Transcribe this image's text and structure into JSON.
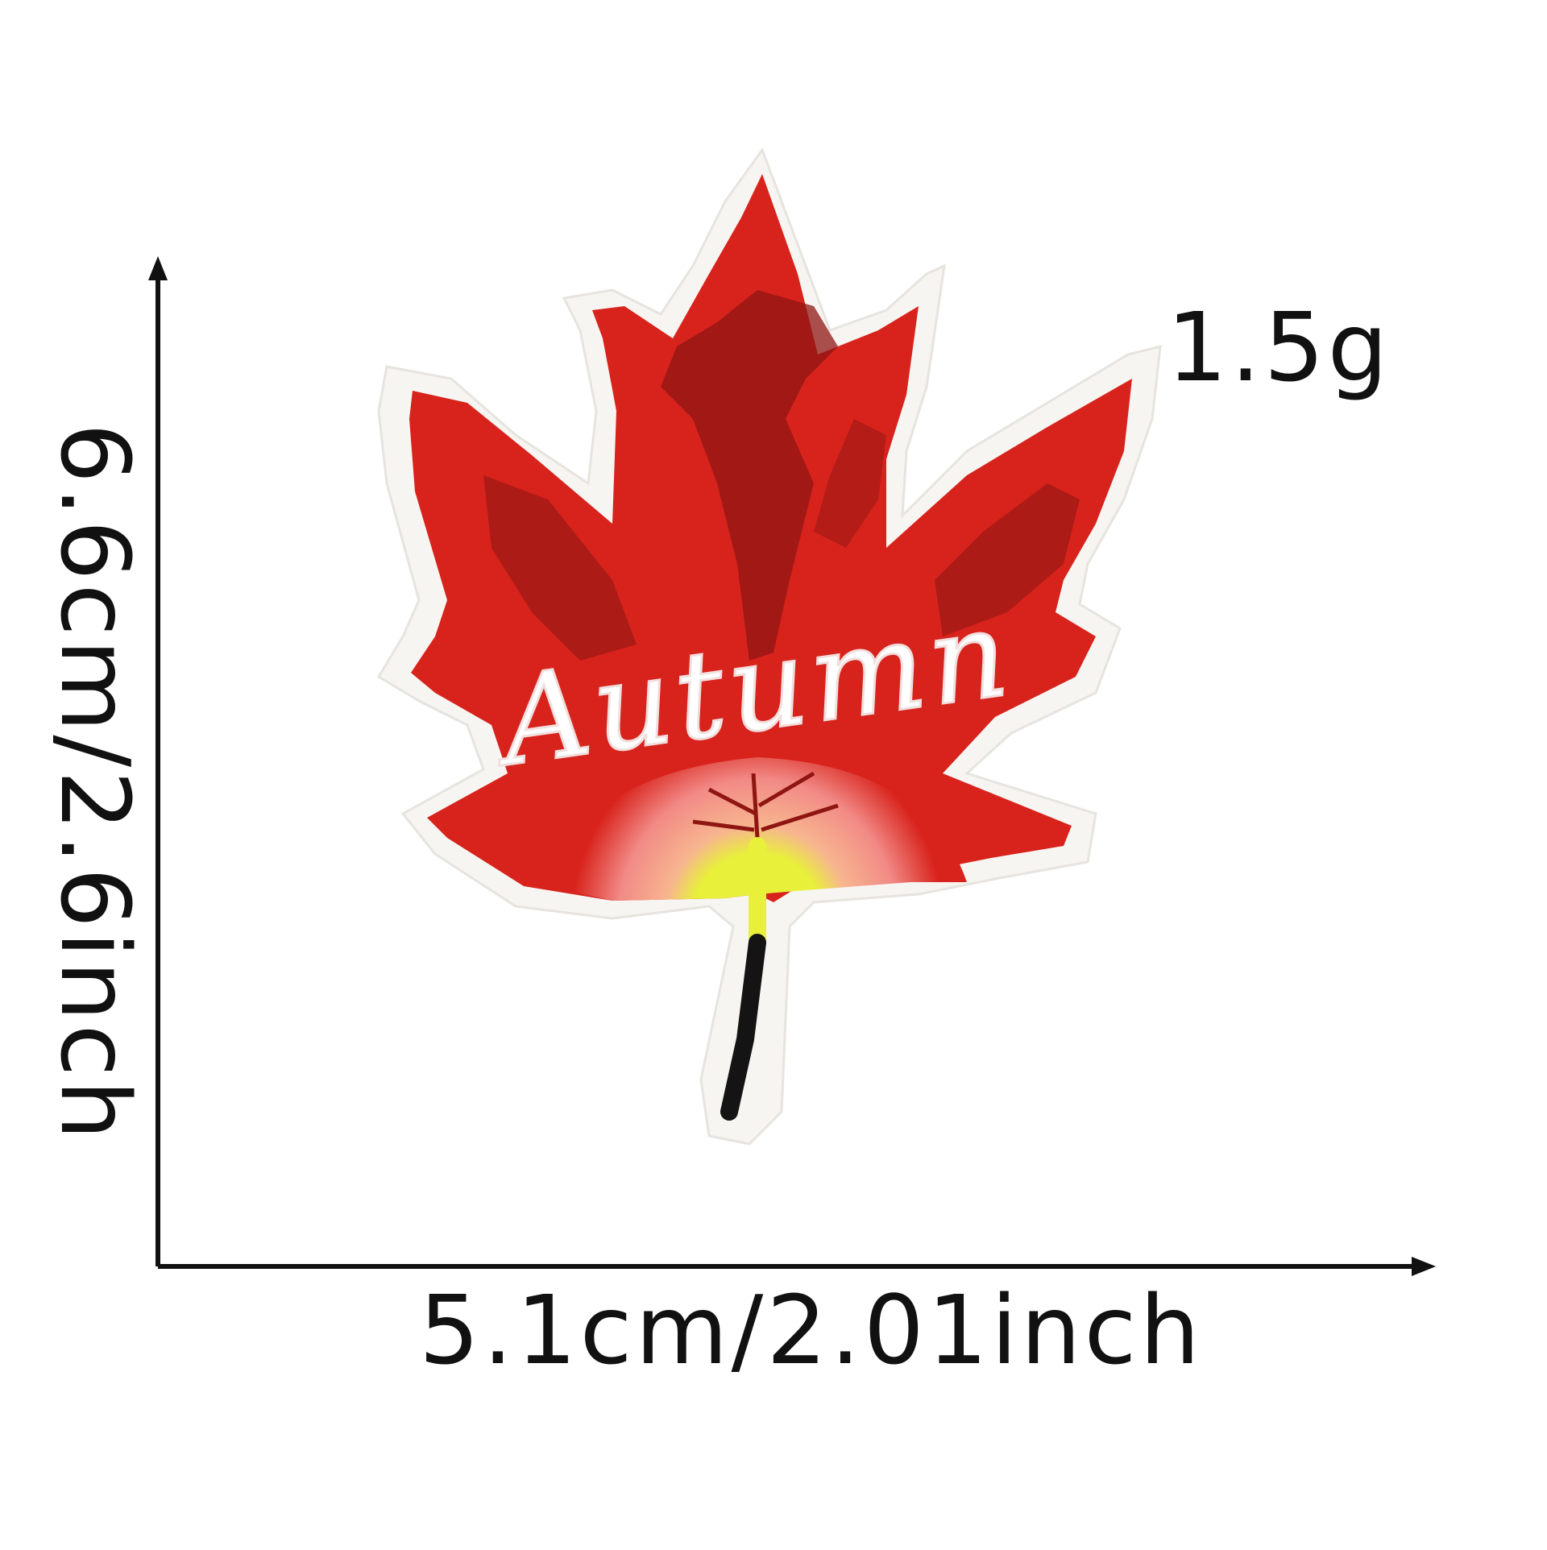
{
  "product": {
    "embroidered_text": "Autumn",
    "weight": "1.5g",
    "width": "5.1cm/2.01inch",
    "height": "6.6cm/2.6inch"
  },
  "colors": {
    "background": "#ffffff",
    "felt_border": "#f7f5f2",
    "leaf_red": "#d8231c",
    "leaf_dark_red": "#8f1512",
    "sunset_pink": "#f28a86",
    "sunset_peach": "#f7b58f",
    "sunset_yellow": "#e8f03a",
    "stem_black": "#141414",
    "arrow_black": "#111111"
  }
}
